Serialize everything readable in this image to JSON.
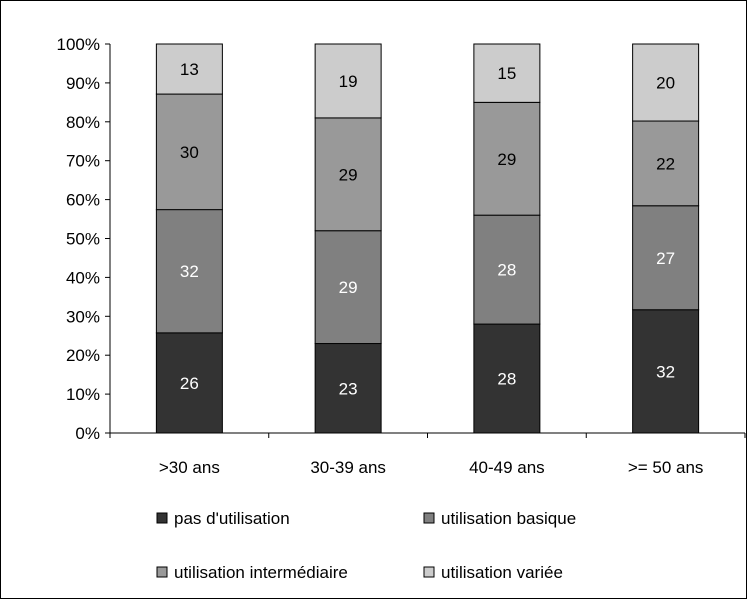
{
  "chart_data": {
    "type": "bar",
    "stacked": true,
    "percent_stacked": true,
    "categories": [
      ">30 ans",
      "30-39 ans",
      "40-49 ans",
      ">= 50 ans"
    ],
    "series": [
      {
        "name": "pas d'utilisation",
        "values": [
          26,
          23,
          28,
          32
        ],
        "color": "#333333",
        "label_color": "#ffffff"
      },
      {
        "name": "utilisation basique",
        "values": [
          32,
          29,
          28,
          27
        ],
        "color": "#808080",
        "label_color": "#ffffff"
      },
      {
        "name": "utilisation intermédiaire",
        "values": [
          30,
          29,
          29,
          22
        ],
        "color": "#999999",
        "label_color": "#000000"
      },
      {
        "name": "utilisation variée",
        "values": [
          13,
          19,
          15,
          20
        ],
        "color": "#cccccc",
        "label_color": "#000000"
      }
    ],
    "y_ticks": [
      "0%",
      "10%",
      "20%",
      "30%",
      "40%",
      "50%",
      "60%",
      "70%",
      "80%",
      "90%",
      "100%"
    ],
    "ylim": [
      0,
      100
    ],
    "title": "",
    "xlabel": "",
    "ylabel": "",
    "grid": false,
    "legend_position": "bottom"
  }
}
